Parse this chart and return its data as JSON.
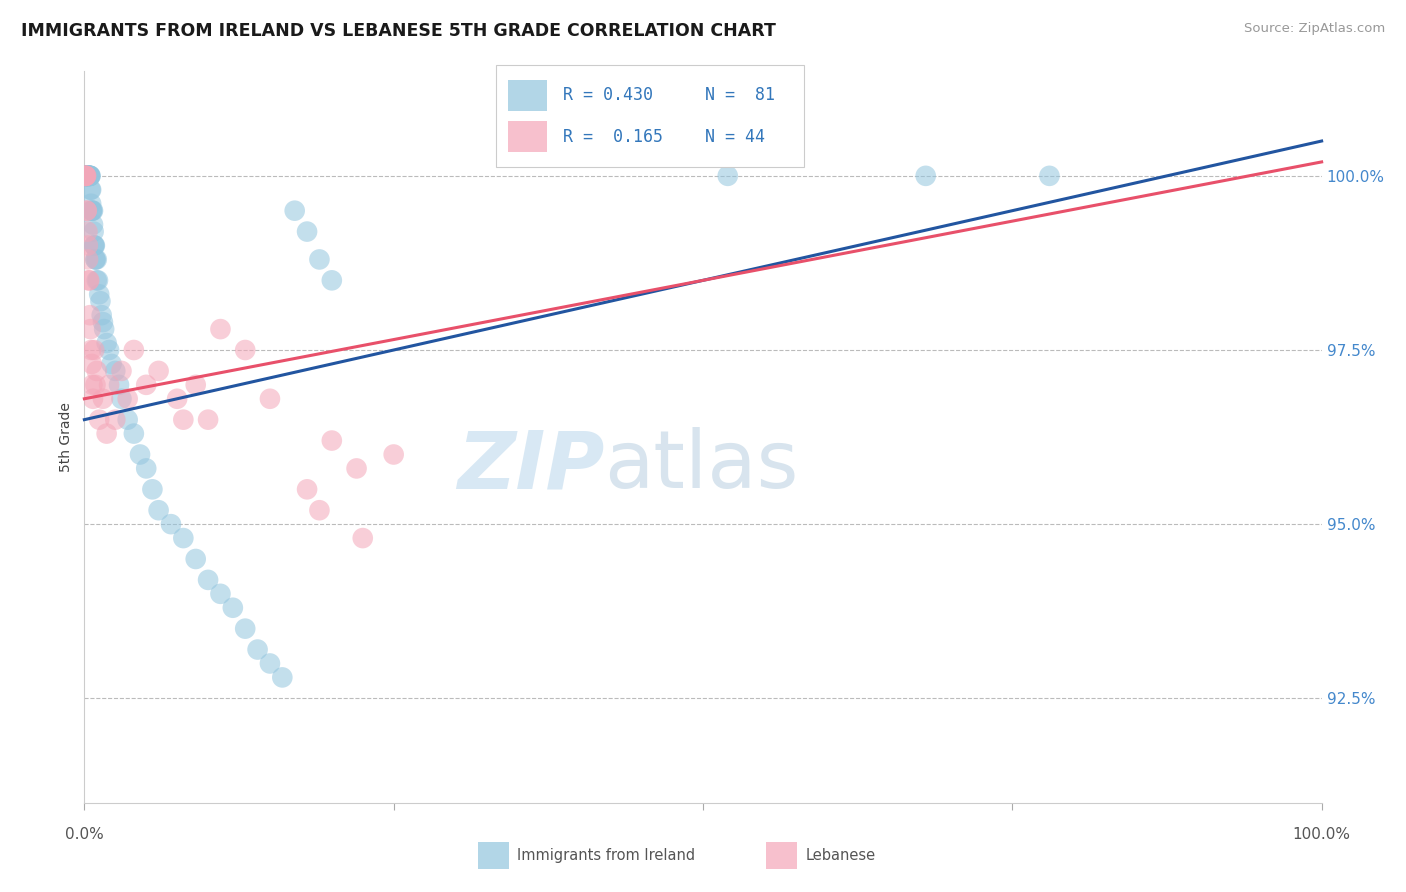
{
  "title": "IMMIGRANTS FROM IRELAND VS LEBANESE 5TH GRADE CORRELATION CHART",
  "source": "Source: ZipAtlas.com",
  "ylabel": "5th Grade",
  "xlim": [
    0,
    100
  ],
  "ylim": [
    91.0,
    101.5
  ],
  "yticks": [
    92.5,
    95.0,
    97.5,
    100.0
  ],
  "ytick_labels": [
    "92.5%",
    "95.0%",
    "97.5%",
    "100.0%"
  ],
  "ireland_R": 0.43,
  "ireland_N": 81,
  "lebanese_R": 0.165,
  "lebanese_N": 44,
  "ireland_color": "#92c5de",
  "lebanese_color": "#f4a6b8",
  "ireland_line_color": "#2255a0",
  "lebanese_line_color": "#e8506a",
  "legend_label_1": "Immigrants from Ireland",
  "legend_label_2": "Lebanese",
  "ireland_x": [
    0.05,
    0.07,
    0.08,
    0.1,
    0.1,
    0.12,
    0.13,
    0.15,
    0.15,
    0.16,
    0.18,
    0.2,
    0.2,
    0.22,
    0.25,
    0.25,
    0.28,
    0.3,
    0.3,
    0.32,
    0.35,
    0.35,
    0.38,
    0.4,
    0.4,
    0.42,
    0.45,
    0.45,
    0.48,
    0.5,
    0.5,
    0.55,
    0.55,
    0.6,
    0.6,
    0.65,
    0.7,
    0.7,
    0.75,
    0.8,
    0.8,
    0.85,
    0.9,
    0.9,
    1.0,
    1.0,
    1.1,
    1.2,
    1.3,
    1.4,
    1.5,
    1.6,
    1.8,
    2.0,
    2.2,
    2.5,
    2.8,
    3.0,
    3.5,
    4.0,
    4.5,
    5.0,
    5.5,
    6.0,
    7.0,
    8.0,
    9.0,
    10.0,
    11.0,
    12.0,
    13.0,
    14.0,
    15.0,
    16.0,
    17.0,
    18.0,
    19.0,
    20.0,
    52.0,
    68.0,
    78.0
  ],
  "ireland_y": [
    100.0,
    100.0,
    100.0,
    100.0,
    100.0,
    100.0,
    100.0,
    100.0,
    100.0,
    100.0,
    100.0,
    100.0,
    100.0,
    100.0,
    100.0,
    100.0,
    100.0,
    100.0,
    100.0,
    100.0,
    100.0,
    100.0,
    100.0,
    100.0,
    100.0,
    100.0,
    100.0,
    100.0,
    100.0,
    100.0,
    99.8,
    99.8,
    99.6,
    99.5,
    99.5,
    99.5,
    99.5,
    99.3,
    99.2,
    99.0,
    99.0,
    99.0,
    98.8,
    98.8,
    98.8,
    98.5,
    98.5,
    98.3,
    98.2,
    98.0,
    97.9,
    97.8,
    97.6,
    97.5,
    97.3,
    97.2,
    97.0,
    96.8,
    96.5,
    96.3,
    96.0,
    95.8,
    95.5,
    95.2,
    95.0,
    94.8,
    94.5,
    94.2,
    94.0,
    93.8,
    93.5,
    93.2,
    93.0,
    92.8,
    99.5,
    99.2,
    98.8,
    98.5,
    100.0,
    100.0,
    100.0
  ],
  "lebanese_x": [
    0.05,
    0.08,
    0.1,
    0.12,
    0.15,
    0.18,
    0.2,
    0.25,
    0.28,
    0.3,
    0.35,
    0.4,
    0.45,
    0.5,
    0.55,
    0.6,
    0.65,
    0.7,
    0.8,
    0.9,
    1.0,
    1.2,
    1.5,
    1.8,
    2.0,
    2.5,
    3.0,
    3.5,
    4.0,
    5.0,
    6.0,
    7.5,
    8.0,
    9.0,
    10.0,
    11.0,
    13.0,
    15.0,
    18.0,
    20.0,
    22.0,
    25.0,
    22.5,
    19.0
  ],
  "lebanese_y": [
    100.0,
    100.0,
    100.0,
    100.0,
    100.0,
    99.5,
    99.5,
    99.2,
    99.0,
    98.8,
    98.5,
    98.5,
    98.0,
    97.8,
    97.5,
    97.3,
    97.0,
    96.8,
    97.5,
    97.0,
    97.2,
    96.5,
    96.8,
    96.3,
    97.0,
    96.5,
    97.2,
    96.8,
    97.5,
    97.0,
    97.2,
    96.8,
    96.5,
    97.0,
    96.5,
    97.8,
    97.5,
    96.8,
    95.5,
    96.2,
    95.8,
    96.0,
    94.8,
    95.2
  ],
  "ireland_trendline_x": [
    0,
    100
  ],
  "ireland_trendline_y": [
    96.5,
    100.5
  ],
  "lebanese_trendline_x": [
    0,
    100
  ],
  "lebanese_trendline_y": [
    96.8,
    100.2
  ]
}
